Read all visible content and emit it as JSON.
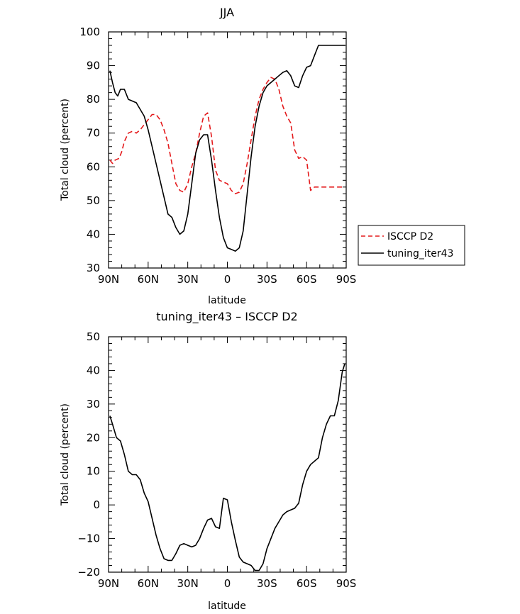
{
  "chart_data": [
    {
      "type": "line",
      "title": "JJA",
      "xlabel": "latitude",
      "ylabel": "Total cloud (percent)",
      "xlim": [
        90,
        -90
      ],
      "ylim": [
        30,
        100
      ],
      "x_ticks": [
        90,
        60,
        30,
        0,
        -30,
        -60,
        -90
      ],
      "x_tick_labels": [
        "90N",
        "60N",
        "30N",
        "0",
        "30S",
        "60S",
        "90S"
      ],
      "y_ticks": [
        30,
        40,
        50,
        60,
        70,
        80,
        90,
        100
      ],
      "legend": {
        "placement": "outside-right",
        "entries": [
          "ISCCP D2",
          "tuning_iter43"
        ]
      },
      "series": [
        {
          "name": "ISCCP D2",
          "color": "#e41a1c",
          "dash": "dashed",
          "x": [
            89,
            87,
            85,
            82,
            80,
            78,
            75,
            72,
            69,
            66,
            63,
            60,
            57,
            54,
            51,
            48,
            45,
            42,
            39,
            36,
            33,
            30,
            27,
            24,
            21,
            18,
            15,
            12,
            9,
            6,
            3,
            0,
            -3,
            -6,
            -9,
            -12,
            -15,
            -18,
            -21,
            -24,
            -27,
            -30,
            -33,
            -36,
            -39,
            -42,
            -45,
            -48,
            -51,
            -54,
            -57,
            -60,
            -63,
            -66,
            -69,
            -72,
            -75,
            -78,
            -81,
            -84,
            -87,
            -89
          ],
          "y": [
            62,
            61,
            62,
            62.5,
            64.5,
            67.5,
            70,
            70.5,
            70,
            71,
            72.5,
            74,
            75.5,
            75.5,
            74,
            71,
            67,
            61,
            55,
            53,
            52.5,
            55,
            60,
            64,
            70,
            75,
            76,
            69,
            59,
            56,
            55.5,
            55,
            53,
            52,
            52.5,
            55,
            61,
            68,
            75,
            80,
            83,
            85,
            86.5,
            86,
            83,
            78,
            75,
            73,
            65,
            62.5,
            63,
            62,
            53,
            54,
            54,
            54,
            54,
            54,
            54,
            54,
            54,
            54
          ]
        },
        {
          "name": "tuning_iter43",
          "color": "#000000",
          "dash": "solid",
          "x": [
            89,
            87,
            85,
            83,
            81,
            78,
            75,
            72,
            69,
            66,
            63,
            60,
            57,
            54,
            51,
            48,
            45,
            42,
            39,
            36,
            33,
            30,
            27,
            24,
            21,
            18,
            15,
            12,
            9,
            6,
            3,
            0,
            -3,
            -6,
            -9,
            -12,
            -15,
            -18,
            -21,
            -24,
            -27,
            -30,
            -33,
            -36,
            -39,
            -42,
            -45,
            -48,
            -51,
            -54,
            -57,
            -60,
            -63,
            -66,
            -69,
            -72,
            -75,
            -78,
            -81,
            -84,
            -87,
            -89
          ],
          "y": [
            88.5,
            85,
            82,
            81,
            83,
            83,
            80,
            79.5,
            79,
            77,
            75,
            71,
            66,
            61,
            56,
            51,
            46,
            45,
            42,
            40,
            41,
            46,
            55,
            64,
            68,
            69.5,
            69.5,
            62,
            53,
            45,
            39,
            36,
            35.5,
            35,
            36,
            41,
            52,
            63,
            72,
            78,
            82,
            84,
            85,
            86,
            87,
            88,
            88.5,
            87,
            84,
            83.5,
            87,
            89.5,
            90,
            93,
            96,
            96,
            96,
            96,
            96,
            96,
            96,
            96
          ]
        }
      ]
    },
    {
      "type": "line",
      "title": "tuning_iter43 – ISCCP D2",
      "xlabel": "latitude",
      "ylabel": "Total cloud (percent)",
      "xlim": [
        90,
        -90
      ],
      "ylim": [
        -20,
        50
      ],
      "x_ticks": [
        90,
        60,
        30,
        0,
        -30,
        -60,
        -90
      ],
      "x_tick_labels": [
        "90N",
        "60N",
        "30N",
        "0",
        "30S",
        "60S",
        "90S"
      ],
      "y_ticks": [
        -20,
        -10,
        0,
        10,
        20,
        30,
        40,
        50
      ],
      "series": [
        {
          "color": "#000000",
          "dash": "solid",
          "x": [
            89,
            87,
            84,
            81,
            78,
            75,
            72,
            69,
            66,
            63,
            60,
            57,
            54,
            51,
            48,
            45,
            42,
            39,
            36,
            33,
            30,
            27,
            24,
            21,
            18,
            15,
            12,
            9,
            6,
            3,
            0,
            -3,
            -6,
            -9,
            -12,
            -15,
            -18,
            -21,
            -24,
            -27,
            -30,
            -33,
            -36,
            -39,
            -42,
            -45,
            -48,
            -51,
            -54,
            -57,
            -60,
            -63,
            -66,
            -69,
            -72,
            -75,
            -78,
            -81,
            -84,
            -87,
            -89
          ],
          "y": [
            26.5,
            24,
            20,
            19,
            15,
            10,
            9,
            9,
            7.5,
            3.5,
            1,
            -4,
            -9,
            -13,
            -16,
            -16.5,
            -16.5,
            -14.5,
            -12,
            -11.5,
            -12,
            -12.5,
            -12,
            -10,
            -7,
            -4.5,
            -4,
            -6.5,
            -7,
            2,
            1.5,
            -5,
            -10.5,
            -15.5,
            -17,
            -17.5,
            -18,
            -19.5,
            -19.5,
            -17.5,
            -13,
            -10,
            -7,
            -5,
            -3,
            -2,
            -1.5,
            -1,
            0.5,
            6,
            10,
            12,
            13,
            14,
            20,
            24,
            26.5,
            26.5,
            31,
            39.5,
            42
          ]
        }
      ]
    }
  ]
}
